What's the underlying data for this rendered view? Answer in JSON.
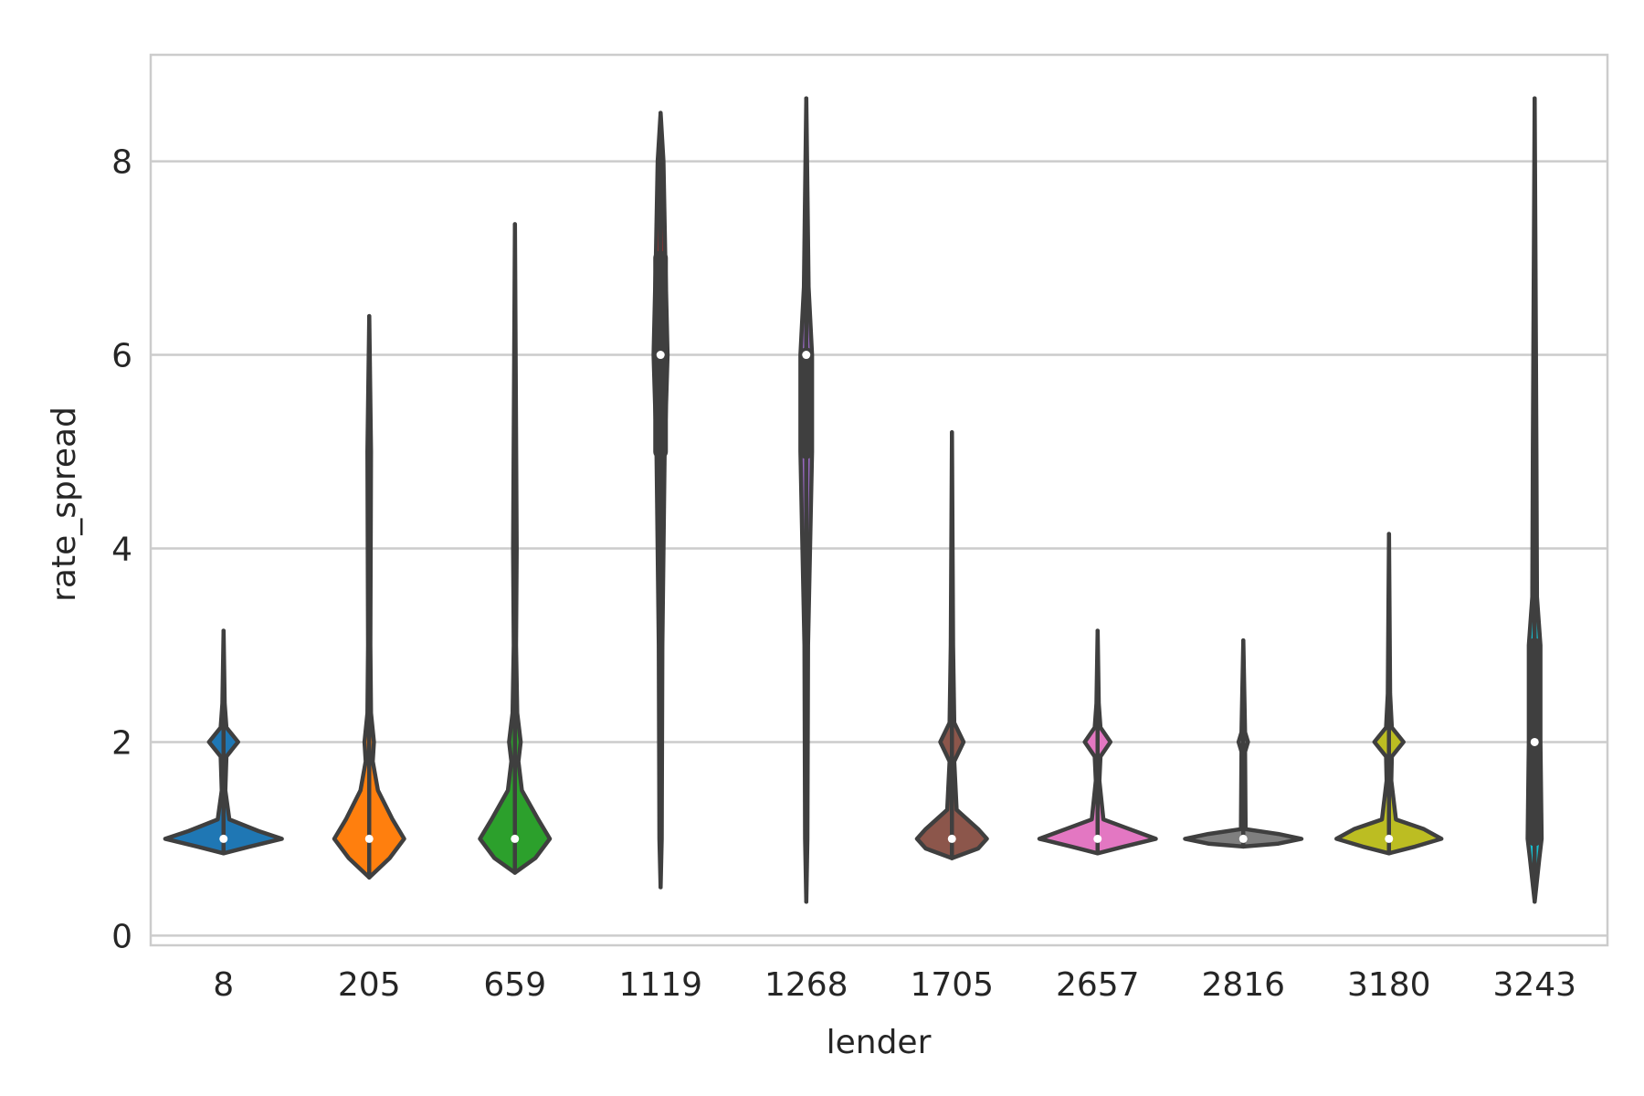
{
  "chart_data": {
    "type": "violin",
    "title": "",
    "xlabel": "lender",
    "ylabel": "rate_spread",
    "ylim": [
      -0.1,
      9.1
    ],
    "yticks": [
      0,
      2,
      4,
      6,
      8
    ],
    "grid": "horizontal",
    "categories": [
      "8",
      "205",
      "659",
      "1119",
      "1268",
      "1705",
      "2657",
      "2816",
      "3180",
      "3243"
    ],
    "colors": [
      "#1f77b4",
      "#ff7f0e",
      "#2ca02c",
      "#d62728",
      "#9467bd",
      "#8c564b",
      "#e377c2",
      "#7f7f7f",
      "#bcbd22",
      "#17becf"
    ],
    "outline_color": "#3f3f3f",
    "violins": [
      {
        "min": 0.85,
        "max": 3.15,
        "q1": 1.0,
        "median": 1.0,
        "q3": 1.0,
        "profile": [
          [
            0.85,
            0.0
          ],
          [
            0.92,
            0.45
          ],
          [
            1.0,
            1.0
          ],
          [
            1.08,
            0.6
          ],
          [
            1.2,
            0.1
          ],
          [
            1.5,
            0.03
          ],
          [
            1.85,
            0.05
          ],
          [
            2.0,
            0.25
          ],
          [
            2.15,
            0.05
          ],
          [
            2.4,
            0.02
          ],
          [
            3.15,
            0.0
          ]
        ]
      },
      {
        "min": 0.6,
        "max": 6.4,
        "q1": 1.0,
        "median": 1.0,
        "q3": 1.0,
        "profile": [
          [
            0.6,
            0.0
          ],
          [
            0.8,
            0.35
          ],
          [
            1.0,
            0.6
          ],
          [
            1.2,
            0.4
          ],
          [
            1.5,
            0.15
          ],
          [
            1.8,
            0.06
          ],
          [
            2.0,
            0.08
          ],
          [
            2.3,
            0.03
          ],
          [
            3.0,
            0.02
          ],
          [
            5.0,
            0.03
          ],
          [
            6.4,
            0.0
          ]
        ]
      },
      {
        "min": 0.65,
        "max": 7.35,
        "q1": 1.0,
        "median": 1.0,
        "q3": 1.0,
        "profile": [
          [
            0.65,
            0.0
          ],
          [
            0.8,
            0.35
          ],
          [
            1.0,
            0.6
          ],
          [
            1.2,
            0.4
          ],
          [
            1.5,
            0.12
          ],
          [
            1.8,
            0.06
          ],
          [
            2.0,
            0.1
          ],
          [
            2.3,
            0.04
          ],
          [
            3.0,
            0.02
          ],
          [
            4.0,
            0.03
          ],
          [
            7.35,
            0.0
          ]
        ]
      },
      {
        "min": 0.5,
        "max": 8.5,
        "q1": 5.0,
        "median": 6.0,
        "q3": 7.0,
        "profile": [
          [
            0.5,
            0.0
          ],
          [
            1.0,
            0.02
          ],
          [
            3.0,
            0.03
          ],
          [
            5.0,
            0.07
          ],
          [
            6.0,
            0.12
          ],
          [
            7.0,
            0.08
          ],
          [
            8.0,
            0.05
          ],
          [
            8.5,
            0.0
          ]
        ]
      },
      {
        "min": 0.35,
        "max": 8.65,
        "q1": 5.0,
        "median": 6.0,
        "q3": 6.0,
        "profile": [
          [
            0.35,
            0.0
          ],
          [
            1.0,
            0.02
          ],
          [
            3.0,
            0.03
          ],
          [
            5.0,
            0.1
          ],
          [
            6.0,
            0.1
          ],
          [
            6.7,
            0.04
          ],
          [
            8.65,
            0.0
          ]
        ]
      },
      {
        "min": 0.8,
        "max": 5.2,
        "q1": 1.0,
        "median": 1.0,
        "q3": 1.0,
        "profile": [
          [
            0.8,
            0.0
          ],
          [
            0.9,
            0.45
          ],
          [
            1.0,
            0.6
          ],
          [
            1.1,
            0.45
          ],
          [
            1.3,
            0.08
          ],
          [
            1.8,
            0.04
          ],
          [
            2.0,
            0.2
          ],
          [
            2.2,
            0.04
          ],
          [
            3.0,
            0.02
          ],
          [
            5.2,
            0.0
          ]
        ]
      },
      {
        "min": 0.85,
        "max": 3.15,
        "q1": 1.0,
        "median": 1.0,
        "q3": 1.0,
        "profile": [
          [
            0.85,
            0.0
          ],
          [
            0.92,
            0.45
          ],
          [
            1.0,
            1.0
          ],
          [
            1.1,
            0.55
          ],
          [
            1.2,
            0.1
          ],
          [
            1.6,
            0.03
          ],
          [
            1.85,
            0.05
          ],
          [
            2.0,
            0.22
          ],
          [
            2.15,
            0.05
          ],
          [
            2.4,
            0.02
          ],
          [
            3.15,
            0.0
          ]
        ]
      },
      {
        "min": 0.92,
        "max": 3.05,
        "q1": 1.0,
        "median": 1.0,
        "q3": 1.0,
        "profile": [
          [
            0.92,
            0.0
          ],
          [
            0.95,
            0.6
          ],
          [
            1.0,
            1.0
          ],
          [
            1.05,
            0.6
          ],
          [
            1.1,
            0.04
          ],
          [
            1.9,
            0.03
          ],
          [
            2.0,
            0.08
          ],
          [
            2.1,
            0.03
          ],
          [
            3.05,
            0.0
          ]
        ]
      },
      {
        "min": 0.85,
        "max": 4.15,
        "q1": 1.0,
        "median": 1.0,
        "q3": 1.0,
        "profile": [
          [
            0.85,
            0.0
          ],
          [
            0.92,
            0.45
          ],
          [
            1.0,
            0.9
          ],
          [
            1.1,
            0.6
          ],
          [
            1.2,
            0.12
          ],
          [
            1.6,
            0.04
          ],
          [
            1.85,
            0.05
          ],
          [
            2.0,
            0.25
          ],
          [
            2.15,
            0.05
          ],
          [
            2.5,
            0.02
          ],
          [
            4.15,
            0.0
          ]
        ]
      },
      {
        "min": 0.35,
        "max": 8.65,
        "q1": 1.0,
        "median": 2.0,
        "q3": 3.0,
        "profile": [
          [
            0.35,
            0.0
          ],
          [
            0.8,
            0.08
          ],
          [
            1.0,
            0.12
          ],
          [
            2.0,
            0.1
          ],
          [
            3.0,
            0.1
          ],
          [
            3.5,
            0.04
          ],
          [
            5.0,
            0.03
          ],
          [
            8.65,
            0.0
          ]
        ]
      }
    ]
  }
}
